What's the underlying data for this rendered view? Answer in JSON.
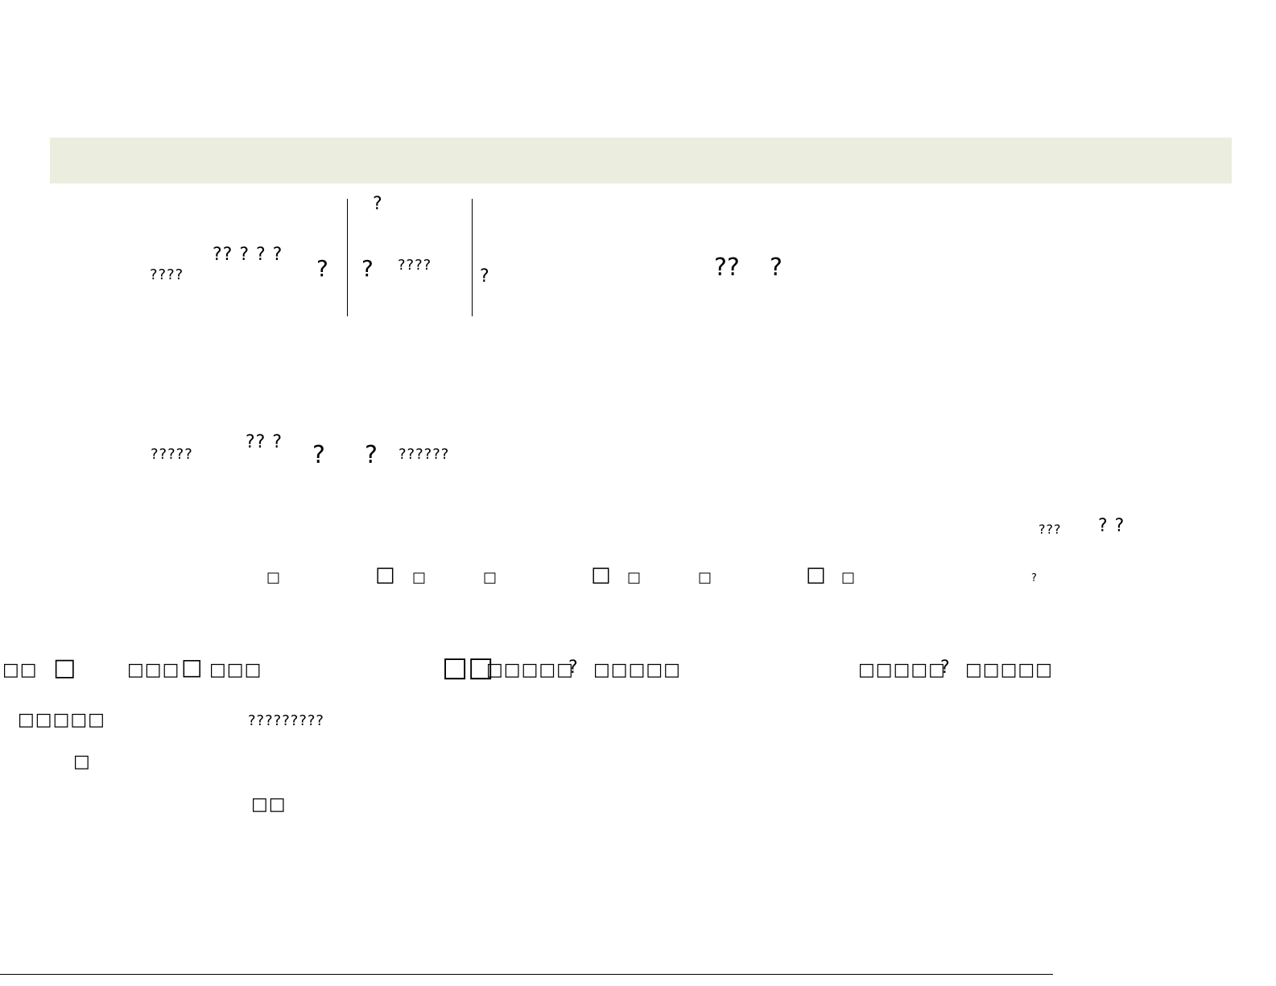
{
  "colors": {
    "header_band": "#ebeedf",
    "rule": "#000000"
  },
  "glyphs": {
    "g01": "?",
    "g02": "????",
    "g03": "?? ? ? ?",
    "g04": "?",
    "g05": "?",
    "g06": "????",
    "g07": "?",
    "g08": "??",
    "g09": "?",
    "g10": "?????",
    "g11": "?? ?",
    "g12": "?",
    "g13": "?",
    "g14": "??????",
    "g15": "???",
    "g16": "? ?",
    "g17": "□",
    "g18": "□",
    "g19": "□",
    "g20": "□",
    "g21": "□",
    "g22": "□",
    "g23": "□",
    "g24": "□",
    "g25": "□",
    "g26": "?",
    "g27": "□□",
    "g28": "□",
    "g29": "□□□",
    "g30": "□",
    "g31": "□□□",
    "g32": "□□",
    "g33": "□□□□□",
    "g34": "?",
    "g35": "□□□□□",
    "g36": "□□□□□",
    "g37": "?",
    "g38": "□□□□□",
    "g39": "□□□□□",
    "g40": "?????????",
    "g41": "□",
    "g42": "□□"
  }
}
